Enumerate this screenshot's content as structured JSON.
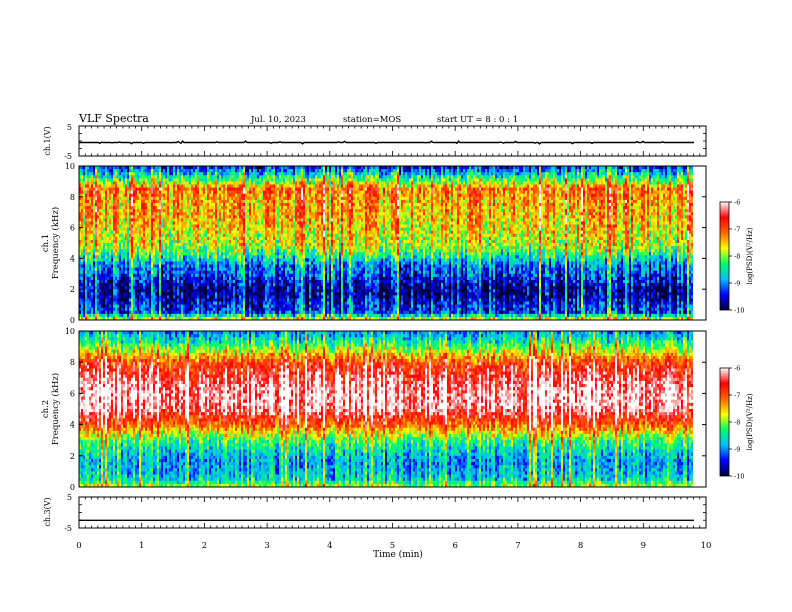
{
  "header": {
    "title": "VLF Spectra",
    "date": "Jul. 10, 2023",
    "station": "station=MOS",
    "start": "start UT =  8 : 0  : 1"
  },
  "colors": {
    "colormap": [
      "#000033",
      "#0000ff",
      "#00bfff",
      "#00ff66",
      "#ffff00",
      "#ff6600",
      "#ff0000",
      "#ffffff"
    ]
  },
  "chart_data": [
    {
      "type": "line",
      "ylabel": "ch.1(V)",
      "ylim": [
        -5,
        5
      ],
      "yticks": [
        "5",
        "-5"
      ],
      "series": [
        {
          "x": [
            0,
            9.83
          ],
          "y": [
            -0.5,
            -0.5
          ]
        }
      ]
    },
    {
      "type": "heatmap",
      "ylabel": "ch.1\nFrequency (kHz)",
      "ylim": [
        0,
        10
      ],
      "xlim": [
        0,
        10
      ],
      "yticks": [
        "0",
        "2",
        "4",
        "6",
        "8",
        "10"
      ],
      "data_end_min": 9.83,
      "frequency_profile_kHz": [
        0,
        0.5,
        1,
        1.5,
        2,
        2.5,
        3,
        3.5,
        4,
        4.5,
        5,
        5.5,
        6,
        6.5,
        7,
        7.5,
        8,
        8.5,
        9,
        9.5,
        10
      ],
      "log_psd_profile": [
        -7.5,
        -9.3,
        -9.4,
        -9.7,
        -9.8,
        -9.5,
        -9.2,
        -9.1,
        -8.6,
        -8.1,
        -7.8,
        -7.7,
        -7.6,
        -7.5,
        -7.4,
        -7.4,
        -7.3,
        -7.1,
        -8.0,
        -8.7,
        -9.5
      ],
      "colorbar": {
        "label": "log(PSD)(V²/Hz)",
        "range": [
          -10,
          -6
        ],
        "ticks": [
          "-6",
          "-7",
          "-8",
          "-9",
          "-10"
        ]
      }
    },
    {
      "type": "heatmap",
      "ylabel": "ch.2\nFrequency (kHz)",
      "ylim": [
        0,
        10
      ],
      "xlim": [
        0,
        10
      ],
      "yticks": [
        "0",
        "2",
        "4",
        "6",
        "8",
        "10"
      ],
      "data_end_min": 9.83,
      "frequency_profile_kHz": [
        0,
        0.5,
        1,
        1.5,
        2,
        2.5,
        3,
        3.5,
        4,
        4.5,
        5,
        5.5,
        6,
        6.5,
        7,
        7.5,
        8,
        8.5,
        9,
        9.5,
        10
      ],
      "log_psd_profile": [
        -7.8,
        -8.6,
        -8.8,
        -8.9,
        -8.8,
        -8.5,
        -8.2,
        -7.6,
        -7.0,
        -6.6,
        -6.2,
        -6.1,
        -6.1,
        -6.2,
        -6.4,
        -6.6,
        -6.9,
        -7.5,
        -8.1,
        -8.6,
        -9.0
      ],
      "colorbar": {
        "label": "log(PSD)(V²/Hz)",
        "range": [
          -10,
          -6
        ],
        "ticks": [
          "-6",
          "-7",
          "-8",
          "-9",
          "-10"
        ]
      }
    },
    {
      "type": "line",
      "ylabel": "ch.3(V)",
      "ylim": [
        -5,
        5
      ],
      "yticks": [
        "5",
        "-5"
      ],
      "series": [
        {
          "x": [
            0,
            9.83
          ],
          "y": [
            -2.5,
            -2.5
          ]
        }
      ]
    }
  ],
  "xaxis": {
    "label": "Time (min)",
    "range": [
      0,
      10
    ],
    "ticks": [
      "0",
      "1",
      "2",
      "3",
      "4",
      "5",
      "6",
      "7",
      "8",
      "9",
      "10"
    ]
  }
}
